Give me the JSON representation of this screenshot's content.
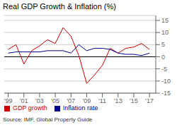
{
  "chart_data": {
    "type": "line",
    "title": "Real GDP Growth & Inflation (%)",
    "annotations": [
      "Source: IMF, Global Property Guide"
    ],
    "x": [
      1999,
      2000,
      2001,
      2002,
      2003,
      2004,
      2005,
      2006,
      2007,
      2008,
      2009,
      2010,
      2011,
      2012,
      2013,
      2014,
      2015,
      2016,
      2017
    ],
    "series": [
      {
        "name": "GDP growth",
        "color": "#cc0000",
        "values": [
          3.0,
          5.0,
          -3.0,
          2.5,
          4.5,
          7.0,
          5.5,
          12.0,
          8.5,
          0.5,
          -11.0,
          -7.5,
          -3.5,
          3.5,
          1.5,
          3.5,
          4.0,
          5.5,
          3.0
        ]
      },
      {
        "name": "Inflation rate",
        "color": "#00008b",
        "values": [
          1.5,
          2.0,
          2.0,
          2.0,
          2.0,
          2.5,
          2.5,
          2.5,
          1.5,
          5.0,
          2.5,
          3.5,
          3.5,
          3.0,
          1.5,
          1.0,
          1.0,
          0.5,
          1.5
        ]
      }
    ],
    "xlim": [
      1998.5,
      2017.8
    ],
    "xticks": [
      {
        "value": 1999,
        "label": "'99"
      },
      {
        "value": 2001,
        "label": "'01"
      },
      {
        "value": 2003,
        "label": "'03"
      },
      {
        "value": 2005,
        "label": "'05"
      },
      {
        "value": 2007,
        "label": "'07"
      },
      {
        "value": 2009,
        "label": "'09"
      },
      {
        "value": 2011,
        "label": "'11"
      },
      {
        "value": 2013,
        "label": "'13"
      },
      {
        "value": 2015,
        "label": "'15"
      },
      {
        "value": 2017,
        "label": "'17"
      }
    ],
    "ylim": [
      -15,
      17
    ],
    "yticks": [
      -15,
      -10,
      -5,
      0,
      5,
      10,
      15
    ],
    "grid": true,
    "legend": "bottom"
  }
}
